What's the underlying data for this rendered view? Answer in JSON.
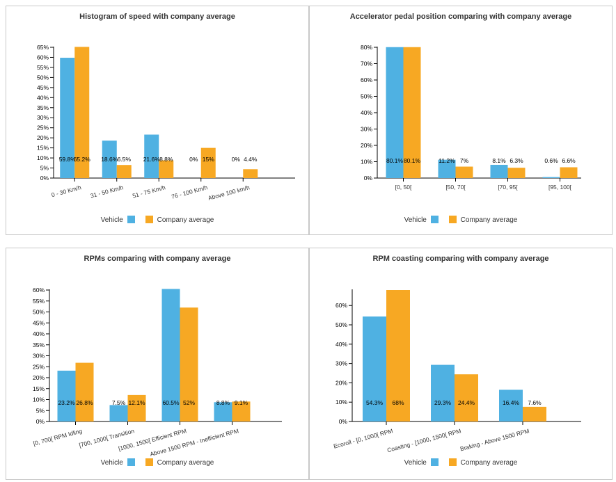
{
  "colors": {
    "vehicle": "#4fb1e2",
    "company": "#f7a823"
  },
  "legend": {
    "vehicle": "Vehicle",
    "company": "Company average"
  },
  "chart_data": [
    {
      "type": "bar",
      "title": "Histogram of speed with company average",
      "categories": [
        "0 - 30 Km/h",
        "31 - 50 Km/h",
        "51 - 75 Km/h",
        "76 - 100 Km/h",
        "Above 100 km/h"
      ],
      "series": [
        {
          "name": "Vehicle",
          "values": [
            59.8,
            18.6,
            21.6,
            0,
            0
          ]
        },
        {
          "name": "Company average",
          "values": [
            65.2,
            6.5,
            8.8,
            15,
            4.4
          ]
        }
      ],
      "data_labels": [
        [
          "59.8%",
          "18.6%",
          "21.6%",
          "0%",
          "0%"
        ],
        [
          "65.2%",
          "6.5%",
          "8.8%",
          "15%",
          "4.4%"
        ]
      ],
      "yticks": [
        "0%",
        "5%",
        "10%",
        "15%",
        "20%",
        "25%",
        "30%",
        "35%",
        "40%",
        "45%",
        "50%",
        "55%",
        "60%",
        "65%"
      ],
      "ylim": [
        0,
        65
      ],
      "grid": false,
      "legend_position": "bottom"
    },
    {
      "type": "bar",
      "title": "Accelerator pedal position comparing with company average",
      "categories": [
        "[0, 50[",
        "[50, 70[",
        "[70, 95[",
        "[95, 100["
      ],
      "series": [
        {
          "name": "Vehicle",
          "values": [
            80.1,
            11.2,
            8.1,
            0.6
          ]
        },
        {
          "name": "Company average",
          "values": [
            80.1,
            7,
            6.3,
            6.6
          ]
        }
      ],
      "data_labels": [
        [
          "80.1%",
          "11.2%",
          "8.1%",
          "0.6%"
        ],
        [
          "80.1%",
          "7%",
          "6.3%",
          "6.6%"
        ]
      ],
      "yticks": [
        "0%",
        "10%",
        "20%",
        "30%",
        "40%",
        "50%",
        "60%",
        "70%",
        "80%"
      ],
      "ylim": [
        0,
        80
      ],
      "grid": false,
      "legend_position": "bottom"
    },
    {
      "type": "bar",
      "title": "RPMs comparing with company average",
      "categories": [
        "[0, 700[ RPM Idling",
        "[700, 1000[ Transition",
        "[1000, 1500[ Efficient RPM",
        "Above 1500 RPM - Inefficient RPM"
      ],
      "series": [
        {
          "name": "Vehicle",
          "values": [
            23.2,
            7.5,
            60.5,
            8.8
          ]
        },
        {
          "name": "Company average",
          "values": [
            26.8,
            12.1,
            52,
            9.1
          ]
        }
      ],
      "data_labels": [
        [
          "23.2%",
          "7.5%",
          "60.5%",
          "8.8%"
        ],
        [
          "26.8%",
          "12.1%",
          "52%",
          "9.1%"
        ]
      ],
      "yticks": [
        "0%",
        "5%",
        "10%",
        "15%",
        "20%",
        "25%",
        "30%",
        "35%",
        "40%",
        "45%",
        "50%",
        "55%",
        "60%"
      ],
      "ylim": [
        0,
        60
      ],
      "grid": false,
      "legend_position": "bottom"
    },
    {
      "type": "bar",
      "title": "RPM coasting comparing with company average",
      "categories": [
        "Ecoroll - [0, 1000[ RPM",
        "Coasting - [1000, 1500[ RPM",
        "Braking - Above 1500 RPM"
      ],
      "series": [
        {
          "name": "Vehicle",
          "values": [
            54.3,
            29.3,
            16.4
          ]
        },
        {
          "name": "Company average",
          "values": [
            68,
            24.4,
            7.6
          ]
        }
      ],
      "data_labels": [
        [
          "54.3%",
          "29.3%",
          "16.4%"
        ],
        [
          "68%",
          "24.4%",
          "7.6%"
        ]
      ],
      "yticks": [
        "0%",
        "10%",
        "20%",
        "30%",
        "40%",
        "50%",
        "60%"
      ],
      "ylim": [
        0,
        68
      ],
      "grid": false,
      "legend_position": "bottom"
    }
  ]
}
